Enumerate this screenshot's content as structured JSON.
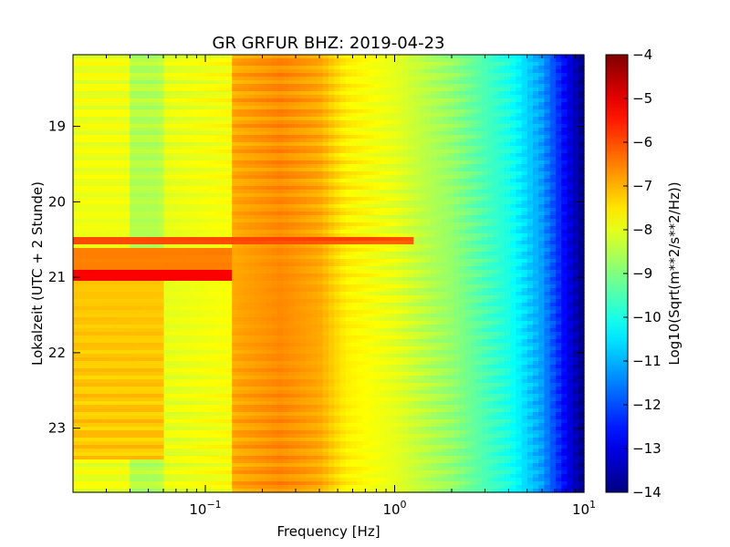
{
  "chart_data": {
    "type": "heatmap",
    "title": "GR GRFUR BHZ: 2019-04-23",
    "xlabel": "Frequency [Hz]",
    "ylabel": "Lokalzeit (UTC + 2 Stunde)",
    "xscale": "log",
    "xlim": [
      0.02,
      10
    ],
    "x_ticks": [
      {
        "value": 0.1,
        "base": "10",
        "exp": "−1"
      },
      {
        "value": 1,
        "base": "10",
        "exp": "0"
      },
      {
        "value": 10,
        "base": "10",
        "exp": "1"
      }
    ],
    "ylim": [
      18.05,
      23.85
    ],
    "y_inverted": true,
    "y_ticks": [
      {
        "value": 19,
        "label": "19"
      },
      {
        "value": 20,
        "label": "20"
      },
      {
        "value": 21,
        "label": "21"
      },
      {
        "value": 22,
        "label": "22"
      },
      {
        "value": 23,
        "label": "23"
      }
    ],
    "colorbar": {
      "label": "Log10(Sqrt(m**2/s**2/Hz))",
      "colormap": "jet",
      "range": [
        -14,
        -4
      ],
      "ticks": [
        {
          "value": -4,
          "label": "−4"
        },
        {
          "value": -5,
          "label": "−5"
        },
        {
          "value": -6,
          "label": "−6"
        },
        {
          "value": -7,
          "label": "−7"
        },
        {
          "value": -8,
          "label": "−8"
        },
        {
          "value": -9,
          "label": "−9"
        },
        {
          "value": -10,
          "label": "−10"
        },
        {
          "value": -11,
          "label": "−11"
        },
        {
          "value": -12,
          "label": "−12"
        },
        {
          "value": -13,
          "label": "−13"
        },
        {
          "value": -14,
          "label": "−14"
        }
      ]
    },
    "frequency_profile": [
      {
        "freq": 0.02,
        "value": -7.9
      },
      {
        "freq": 0.039,
        "value": -7.9
      },
      {
        "freq": 0.04,
        "value": -8.5
      },
      {
        "freq": 0.058,
        "value": -8.5
      },
      {
        "freq": 0.06,
        "value": -8.0
      },
      {
        "freq": 0.135,
        "value": -7.8
      },
      {
        "freq": 0.14,
        "value": -6.9
      },
      {
        "freq": 0.25,
        "value": -6.6
      },
      {
        "freq": 0.4,
        "value": -6.9
      },
      {
        "freq": 0.55,
        "value": -7.6
      },
      {
        "freq": 1.0,
        "value": -8.0
      },
      {
        "freq": 2.0,
        "value": -8.8
      },
      {
        "freq": 4.0,
        "value": -10.0
      },
      {
        "freq": 6.0,
        "value": -11.2
      },
      {
        "freq": 8.0,
        "value": -12.8
      },
      {
        "freq": 10.0,
        "value": -14.0
      }
    ],
    "events": [
      {
        "time_start": 20.45,
        "time_end": 20.55,
        "freq_max": 1.3,
        "value": -6.0
      },
      {
        "time_start": 20.6,
        "time_end": 20.95,
        "freq_max": 0.14,
        "value": -6.5
      },
      {
        "time_start": 20.92,
        "time_end": 21.03,
        "freq_max": 0.14,
        "value": -5.2
      },
      {
        "time_start": 21.03,
        "time_end": 23.4,
        "freq_max": 0.06,
        "value": -7.2
      }
    ]
  }
}
